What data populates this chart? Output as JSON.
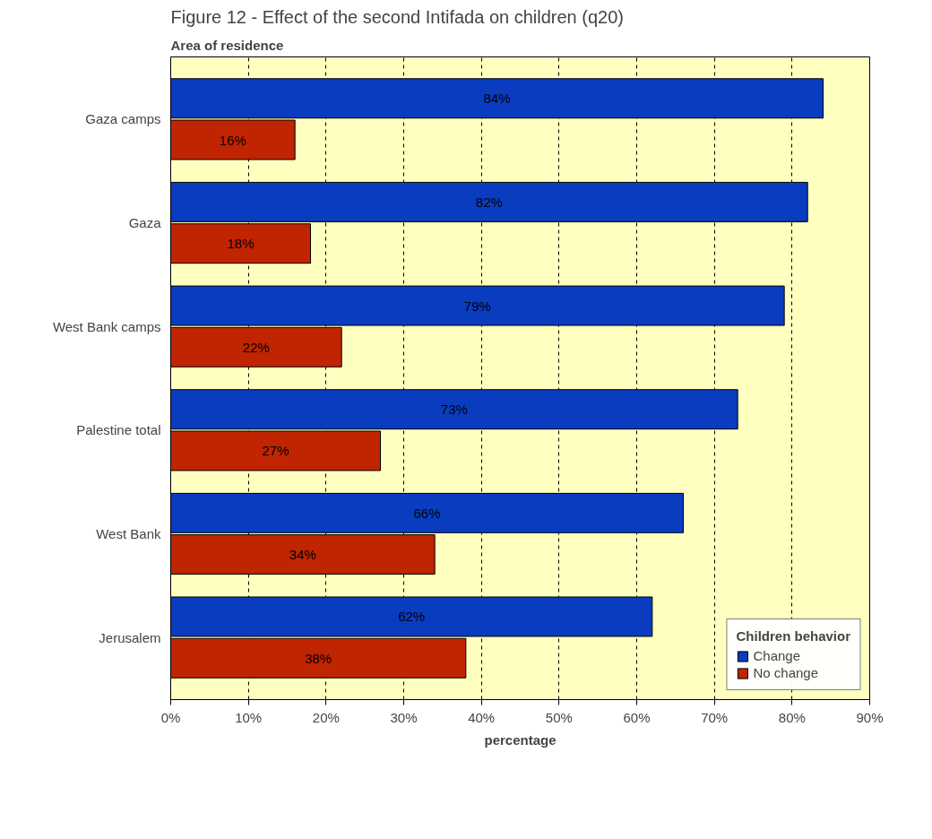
{
  "chart_data": {
    "type": "bar",
    "orientation": "horizontal",
    "title": "Figure 12 - Effect of the second Intifada on children (q20)",
    "ylabel": "Area of residence",
    "xlabel": "percentage",
    "legend_title": "Children behavior",
    "legend": "right",
    "grid": "x",
    "categories": [
      "Gaza camps",
      "Gaza",
      "West Bank camps",
      "Palestine total",
      "West Bank",
      "Jerusalem"
    ],
    "series": [
      {
        "name": "Change",
        "color": "#0a3cc0",
        "values": [
          84,
          82,
          79,
          73,
          66,
          62
        ],
        "value_labels": [
          "84%",
          "82%",
          "79%",
          "73%",
          "66%",
          "62%"
        ]
      },
      {
        "name": "No change",
        "color": "#c02400",
        "values": [
          16,
          18,
          22,
          27,
          34,
          38
        ],
        "value_labels": [
          "16%",
          "18%",
          "22%",
          "27%",
          "34%",
          "38%"
        ]
      }
    ],
    "xlim": [
      0,
      90
    ],
    "xticks": [
      {
        "value": 0,
        "label": "0%"
      },
      {
        "value": 10,
        "label": "10%"
      },
      {
        "value": 20,
        "label": "20%"
      },
      {
        "value": 30,
        "label": "30%"
      },
      {
        "value": 40,
        "label": "40%"
      },
      {
        "value": 50,
        "label": "50%"
      },
      {
        "value": 60,
        "label": "60%"
      },
      {
        "value": 70,
        "label": "70%"
      },
      {
        "value": 80,
        "label": "80%"
      },
      {
        "value": 90,
        "label": "90%"
      }
    ]
  }
}
